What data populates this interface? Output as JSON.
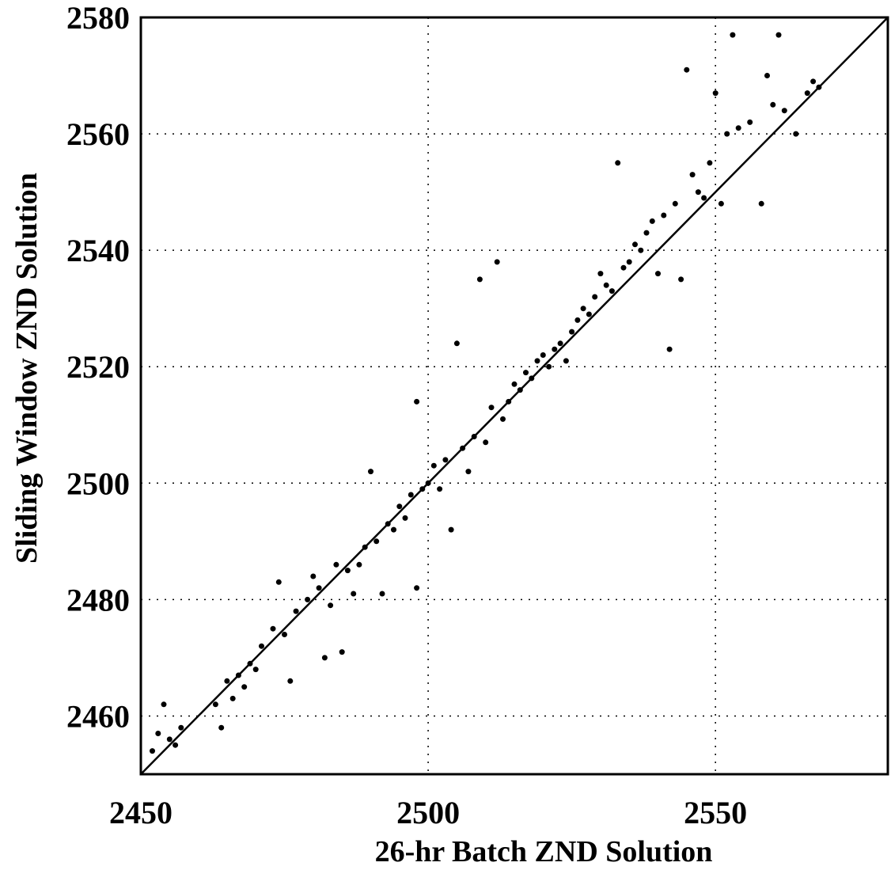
{
  "chart_data": {
    "type": "scatter",
    "title": "",
    "xlabel": "26-hr Batch ZND Solution",
    "ylabel": "Sliding Window ZND Solution",
    "xlim": [
      2450,
      2580
    ],
    "ylim": [
      2450,
      2580
    ],
    "xticks": [
      2450,
      2500,
      2550
    ],
    "yticks": [
      2460,
      2480,
      2500,
      2520,
      2540,
      2560,
      2580
    ],
    "grid": true,
    "grid_style": "dotted",
    "reference_line": {
      "type": "y=x",
      "from": [
        2450,
        2450
      ],
      "to": [
        2580,
        2580
      ]
    },
    "marker_color": "#000000",
    "series": [
      {
        "points": [
          [
            2452,
            2454
          ],
          [
            2453,
            2457
          ],
          [
            2454,
            2462
          ],
          [
            2455,
            2456
          ],
          [
            2456,
            2455
          ],
          [
            2457,
            2458
          ],
          [
            2463,
            2462
          ],
          [
            2464,
            2458
          ],
          [
            2465,
            2466
          ],
          [
            2466,
            2463
          ],
          [
            2467,
            2467
          ],
          [
            2468,
            2465
          ],
          [
            2469,
            2469
          ],
          [
            2470,
            2468
          ],
          [
            2471,
            2472
          ],
          [
            2473,
            2475
          ],
          [
            2474,
            2483
          ],
          [
            2475,
            2474
          ],
          [
            2476,
            2466
          ],
          [
            2477,
            2478
          ],
          [
            2479,
            2480
          ],
          [
            2480,
            2484
          ],
          [
            2481,
            2482
          ],
          [
            2482,
            2470
          ],
          [
            2483,
            2479
          ],
          [
            2484,
            2486
          ],
          [
            2485,
            2471
          ],
          [
            2486,
            2485
          ],
          [
            2487,
            2481
          ],
          [
            2488,
            2486
          ],
          [
            2489,
            2489
          ],
          [
            2490,
            2502
          ],
          [
            2491,
            2490
          ],
          [
            2492,
            2481
          ],
          [
            2493,
            2493
          ],
          [
            2494,
            2492
          ],
          [
            2495,
            2496
          ],
          [
            2496,
            2494
          ],
          [
            2497,
            2498
          ],
          [
            2498,
            2482
          ],
          [
            2498,
            2514
          ],
          [
            2499,
            2499
          ],
          [
            2500,
            2500
          ],
          [
            2501,
            2503
          ],
          [
            2502,
            2499
          ],
          [
            2503,
            2504
          ],
          [
            2504,
            2492
          ],
          [
            2505,
            2524
          ],
          [
            2506,
            2506
          ],
          [
            2507,
            2502
          ],
          [
            2508,
            2508
          ],
          [
            2509,
            2535
          ],
          [
            2510,
            2507
          ],
          [
            2511,
            2513
          ],
          [
            2512,
            2538
          ],
          [
            2513,
            2511
          ],
          [
            2514,
            2514
          ],
          [
            2515,
            2517
          ],
          [
            2516,
            2516
          ],
          [
            2517,
            2519
          ],
          [
            2518,
            2518
          ],
          [
            2519,
            2521
          ],
          [
            2520,
            2522
          ],
          [
            2521,
            2520
          ],
          [
            2522,
            2523
          ],
          [
            2523,
            2524
          ],
          [
            2524,
            2521
          ],
          [
            2525,
            2526
          ],
          [
            2526,
            2528
          ],
          [
            2527,
            2530
          ],
          [
            2528,
            2529
          ],
          [
            2529,
            2532
          ],
          [
            2530,
            2536
          ],
          [
            2531,
            2534
          ],
          [
            2532,
            2533
          ],
          [
            2533,
            2555
          ],
          [
            2534,
            2537
          ],
          [
            2535,
            2538
          ],
          [
            2536,
            2541
          ],
          [
            2537,
            2540
          ],
          [
            2538,
            2543
          ],
          [
            2539,
            2545
          ],
          [
            2540,
            2536
          ],
          [
            2541,
            2546
          ],
          [
            2542,
            2523
          ],
          [
            2543,
            2548
          ],
          [
            2544,
            2535
          ],
          [
            2545,
            2571
          ],
          [
            2546,
            2553
          ],
          [
            2547,
            2550
          ],
          [
            2548,
            2549
          ],
          [
            2549,
            2555
          ],
          [
            2550,
            2567
          ],
          [
            2551,
            2548
          ],
          [
            2552,
            2560
          ],
          [
            2553,
            2577
          ],
          [
            2554,
            2561
          ],
          [
            2556,
            2562
          ],
          [
            2558,
            2548
          ],
          [
            2559,
            2570
          ],
          [
            2560,
            2565
          ],
          [
            2561,
            2577
          ],
          [
            2562,
            2564
          ],
          [
            2564,
            2560
          ],
          [
            2566,
            2567
          ],
          [
            2567,
            2569
          ],
          [
            2568,
            2568
          ]
        ]
      }
    ]
  }
}
